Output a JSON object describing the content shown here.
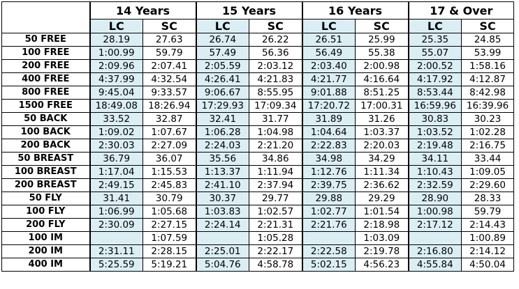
{
  "table": {
    "groups": [
      "14 Years",
      "15 Years",
      "16 Years",
      "17 & Over"
    ],
    "subheaders": [
      "LC",
      "SC",
      "LC",
      "SC",
      "LC",
      "SC",
      "LC",
      "SC"
    ],
    "rows": [
      {
        "label": "50 FREE",
        "values": [
          "28.19",
          "27.63",
          "26.74",
          "26.22",
          "26.51",
          "25.99",
          "25.35",
          "24.85"
        ]
      },
      {
        "label": "100 FREE",
        "values": [
          "1:00.99",
          "59.79",
          "57.49",
          "56.36",
          "56.49",
          "55.38",
          "55.07",
          "53.99"
        ]
      },
      {
        "label": "200 FREE",
        "values": [
          "2:09.96",
          "2:07.41",
          "2:05.59",
          "2:03.12",
          "2:03.40",
          "2:00.98",
          "2:00.52",
          "1:58.16"
        ]
      },
      {
        "label": "400 FREE",
        "values": [
          "4:37.99",
          "4:32.54",
          "4:26.41",
          "4:21.83",
          "4:21.77",
          "4:16.64",
          "4:17.92",
          "4:12.87"
        ]
      },
      {
        "label": "800 FREE",
        "values": [
          "9:45.04",
          "9:33.57",
          "9:06.67",
          "8:55.95",
          "9:01.88",
          "8:51.25",
          "8:53.44",
          "8:42.98"
        ]
      },
      {
        "label": "1500 FREE",
        "values": [
          "18:49.08",
          "18:26.94",
          "17:29.93",
          "17:09.34",
          "17:20.72",
          "17:00.31",
          "16:59.96",
          "16:39.96"
        ]
      },
      {
        "label": "50 BACK",
        "values": [
          "33.52",
          "32.87",
          "32.41",
          "31.77",
          "31.89",
          "31.26",
          "30.83",
          "30.23"
        ]
      },
      {
        "label": "100 BACK",
        "values": [
          "1:09.02",
          "1:07.67",
          "1:06.28",
          "1:04.98",
          "1:04.64",
          "1:03.37",
          "1:03.52",
          "1:02.28"
        ]
      },
      {
        "label": "200 BACK",
        "values": [
          "2:30.03",
          "2:27.09",
          "2:24.03",
          "2:21.20",
          "2:22.83",
          "2:20.03",
          "2:19.48",
          "2:16.75"
        ]
      },
      {
        "label": "50 BREAST",
        "values": [
          "36.79",
          "36.07",
          "35.56",
          "34.86",
          "34.98",
          "34.29",
          "34.11",
          "33.44"
        ]
      },
      {
        "label": "100 BREAST",
        "values": [
          "1:17.04",
          "1:15.53",
          "1:13.37",
          "1:11.94",
          "1:12.76",
          "1:11.34",
          "1:10.43",
          "1:09.05"
        ]
      },
      {
        "label": "200 BREAST",
        "values": [
          "2:49.15",
          "2:45.83",
          "2:41.10",
          "2:37.94",
          "2:39.75",
          "2:36.62",
          "2:32.59",
          "2:29.60"
        ]
      },
      {
        "label": "50 FLY",
        "values": [
          "31.41",
          "30.79",
          "30.37",
          "29.77",
          "29.88",
          "29.29",
          "28.90",
          "28.33"
        ]
      },
      {
        "label": "100 FLY",
        "values": [
          "1:06.99",
          "1:05.68",
          "1:03.83",
          "1:02.57",
          "1:02.77",
          "1:01.54",
          "1:00.98",
          "59.79"
        ]
      },
      {
        "label": "200 FLY",
        "values": [
          "2:30.09",
          "2:27.15",
          "2:24.14",
          "2:21.31",
          "2:21.76",
          "2:18.98",
          "2:17.12",
          "2:14.43"
        ]
      },
      {
        "label": "100 IM",
        "values": [
          null,
          "1:07.59",
          null,
          "1:05.28",
          null,
          "1:03.09",
          null,
          "1:00.89"
        ]
      },
      {
        "label": "200 IM",
        "values": [
          "2:31.11",
          "2:28.15",
          "2:25.01",
          "2:22.17",
          "2:22.58",
          "2:19.78",
          "2:16.80",
          "2:14.12"
        ]
      },
      {
        "label": "400 IM",
        "values": [
          "5:25.59",
          "5:19.21",
          "5:04.76",
          "4:58.78",
          "5:02.15",
          "4:56.23",
          "4:55.84",
          "4:50.04"
        ]
      }
    ]
  }
}
